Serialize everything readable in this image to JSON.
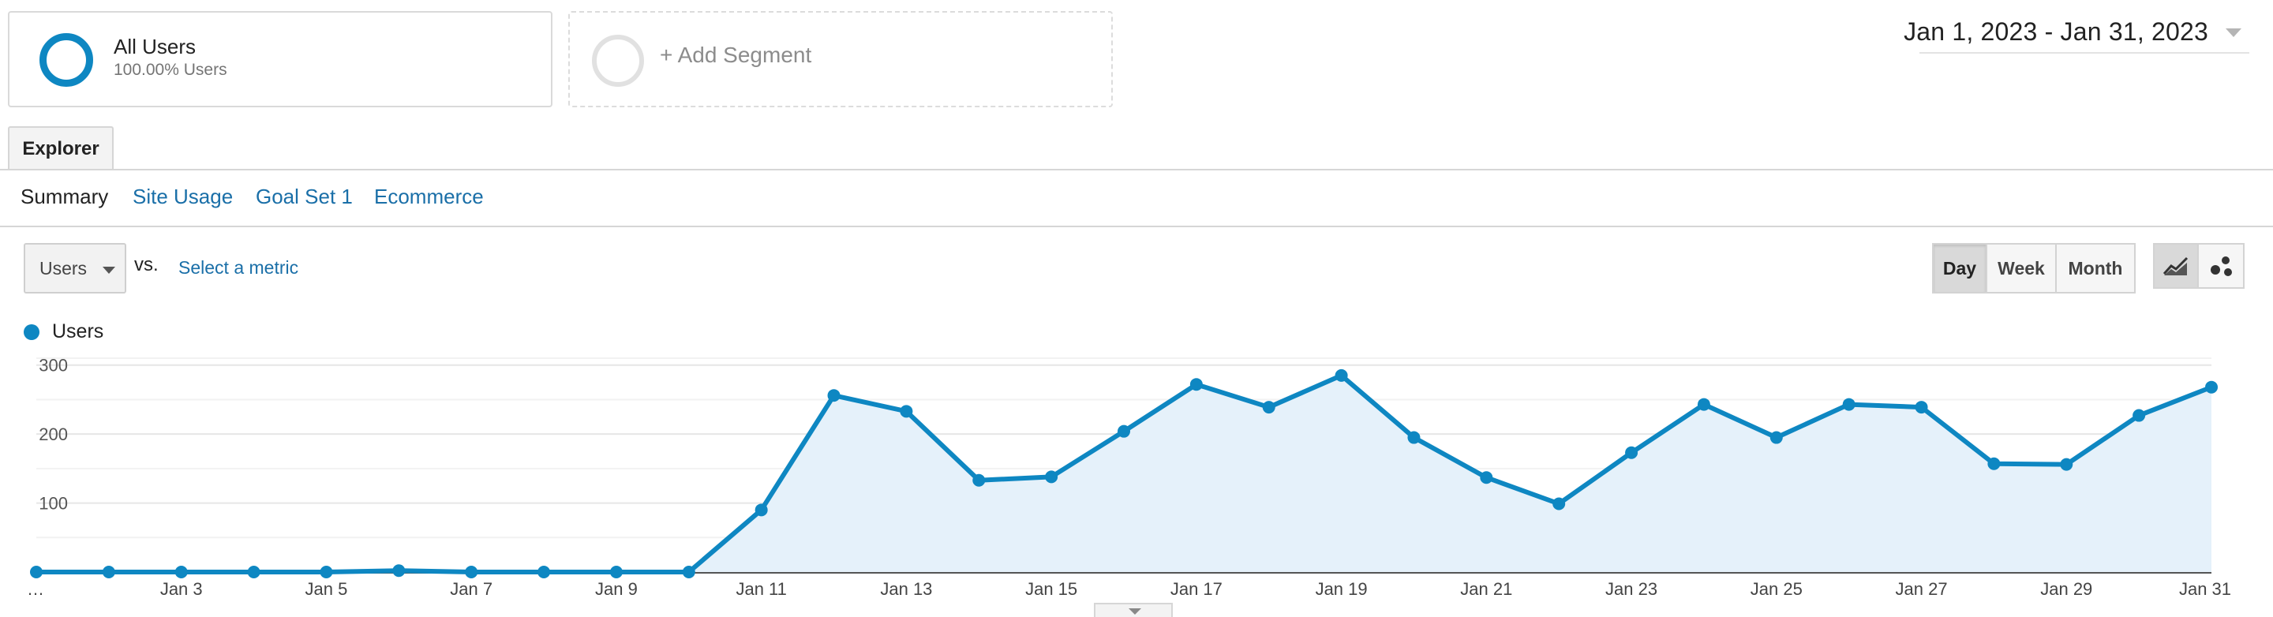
{
  "segments": {
    "all_users": {
      "title": "All Users",
      "subtitle": "100.00% Users"
    },
    "add_segment_label": "+ Add Segment"
  },
  "date_range": "Jan 1, 2023 - Jan 31, 2023",
  "tabs": {
    "explorer": "Explorer"
  },
  "subtabs": [
    "Summary",
    "Site Usage",
    "Goal Set 1",
    "Ecommerce"
  ],
  "metric": {
    "selected": "Users",
    "vs": "vs.",
    "select_metric": "Select a metric"
  },
  "period_buttons": [
    "Day",
    "Week",
    "Month"
  ],
  "period_selected": "Day",
  "view_toggle": {
    "line_icon": "line-chart-icon",
    "motion_icon": "motion-chart-icon"
  },
  "legend": {
    "label": "Users"
  },
  "colors": {
    "series": "#0e87c2",
    "fill": "#e5f1fa",
    "link": "#1a6fa8"
  },
  "chart_data": {
    "type": "area",
    "title": "",
    "xlabel": "",
    "ylabel": "",
    "ylim": [
      0,
      300
    ],
    "yticks": [
      100,
      200,
      300
    ],
    "x": [
      "Jan 1",
      "Jan 2",
      "Jan 3",
      "Jan 4",
      "Jan 5",
      "Jan 6",
      "Jan 7",
      "Jan 8",
      "Jan 9",
      "Jan 10",
      "Jan 11",
      "Jan 12",
      "Jan 13",
      "Jan 14",
      "Jan 15",
      "Jan 16",
      "Jan 17",
      "Jan 18",
      "Jan 19",
      "Jan 20",
      "Jan 21",
      "Jan 22",
      "Jan 23",
      "Jan 24",
      "Jan 25",
      "Jan 26",
      "Jan 27",
      "Jan 28",
      "Jan 29",
      "Jan 30",
      "Jan 31"
    ],
    "x_tick_labels": [
      "…",
      "Jan 3",
      "Jan 5",
      "Jan 7",
      "Jan 9",
      "Jan 11",
      "Jan 13",
      "Jan 15",
      "Jan 17",
      "Jan 19",
      "Jan 21",
      "Jan 23",
      "Jan 25",
      "Jan 27",
      "Jan 29",
      "Jan 31"
    ],
    "series": [
      {
        "name": "Users",
        "values": [
          0,
          0,
          0,
          0,
          0,
          2,
          0,
          0,
          0,
          0,
          90,
          256,
          233,
          133,
          138,
          204,
          272,
          239,
          285,
          195,
          137,
          99,
          173,
          243,
          195,
          243,
          239,
          157,
          156,
          227,
          268
        ]
      }
    ],
    "grid": true,
    "legend_position": "top-left"
  }
}
